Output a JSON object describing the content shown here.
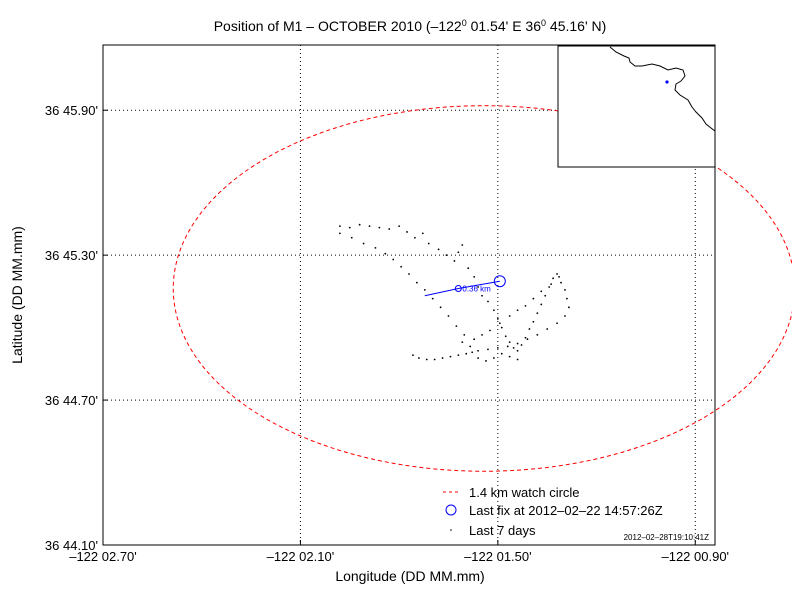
{
  "chart_data": {
    "type": "scatter",
    "title": {
      "prefix": "Position of M1 – OCTOBER 2010 (–122",
      "sup1": "0",
      "mid": " 01.54' E  36",
      "sup2": "0",
      "suffix": " 45.16' N)"
    },
    "xlabel": "Longitude (DD MM.mm)",
    "ylabel": "Latitude (DD MM.mm)",
    "xlim": [
      -122.045,
      -122.014
    ],
    "ylim": [
      36.735,
      36.7695
    ],
    "xticks": [
      {
        "value": -122.045,
        "label": "–122 02.70'"
      },
      {
        "value": -122.035,
        "label": "–122 02.10'"
      },
      {
        "value": -122.025,
        "label": "–122 01.50'"
      },
      {
        "value": -122.015,
        "label": "–122 00.90'"
      }
    ],
    "yticks": [
      {
        "value": 36.735,
        "label": "36 44.10'"
      },
      {
        "value": 36.745,
        "label": "36 44.70'"
      },
      {
        "value": 36.755,
        "label": "36 45.30'"
      },
      {
        "value": 36.765,
        "label": "36 45.90'"
      }
    ],
    "grid": true,
    "legend_position": "bottom-right",
    "series": [
      {
        "name": "1.4 km watch circle",
        "kind": "watch-circle",
        "color": "#ff0000",
        "center": [
          -122.0257,
          36.7527
        ],
        "radius_km": 1.4
      },
      {
        "name": "Last fix at 2012–02–22 14:57:26Z",
        "kind": "last-fix",
        "color": "#0000ff",
        "x": -122.0249,
        "y": 36.7532
      },
      {
        "name": "Last 7 days",
        "kind": "history",
        "color": "#000000",
        "points": [
          [
            -122.033,
            36.757
          ],
          [
            -122.0325,
            36.7569
          ],
          [
            -122.032,
            36.7571
          ],
          [
            -122.0315,
            36.757
          ],
          [
            -122.031,
            36.7569
          ],
          [
            -122.0305,
            36.7568
          ],
          [
            -122.03,
            36.757
          ],
          [
            -122.0296,
            36.7566
          ],
          [
            -122.0292,
            36.7562
          ],
          [
            -122.0288,
            36.7565
          ],
          [
            -122.0285,
            36.7558
          ],
          [
            -122.028,
            36.7554
          ],
          [
            -122.0276,
            36.755
          ],
          [
            -122.0272,
            36.7546
          ],
          [
            -122.027,
            36.7552
          ],
          [
            -122.0268,
            36.7557
          ],
          [
            -122.0265,
            36.7541
          ],
          [
            -122.0262,
            36.7535
          ],
          [
            -122.026,
            36.7528
          ],
          [
            -122.0258,
            36.7522
          ],
          [
            -122.0255,
            36.7518
          ],
          [
            -122.0252,
            36.7512
          ],
          [
            -122.025,
            36.7506
          ],
          [
            -122.0248,
            36.75
          ],
          [
            -122.0246,
            36.7494
          ],
          [
            -122.0244,
            36.749
          ],
          [
            -122.0242,
            36.7486
          ],
          [
            -122.024,
            36.7484
          ],
          [
            -122.0238,
            36.7488
          ],
          [
            -122.0236,
            36.7493
          ],
          [
            -122.0234,
            36.7499
          ],
          [
            -122.0232,
            36.7504
          ],
          [
            -122.023,
            36.751
          ],
          [
            -122.0228,
            36.7516
          ],
          [
            -122.0226,
            36.7522
          ],
          [
            -122.0224,
            36.7528
          ],
          [
            -122.0222,
            36.7534
          ],
          [
            -122.022,
            36.7537
          ],
          [
            -122.0218,
            36.7531
          ],
          [
            -122.0216,
            36.7526
          ],
          [
            -122.0215,
            36.752
          ],
          [
            -122.0214,
            36.7514
          ],
          [
            -122.0216,
            36.7508
          ],
          [
            -122.022,
            36.7503
          ],
          [
            -122.0225,
            36.7499
          ],
          [
            -122.023,
            36.7495
          ],
          [
            -122.0235,
            36.7492
          ],
          [
            -122.024,
            36.7489
          ],
          [
            -122.0245,
            36.7487
          ],
          [
            -122.025,
            36.7486
          ],
          [
            -122.0255,
            36.7485
          ],
          [
            -122.026,
            36.7484
          ],
          [
            -122.0263,
            36.7483
          ],
          [
            -122.0266,
            36.7482
          ],
          [
            -122.027,
            36.7481
          ],
          [
            -122.0274,
            36.748
          ],
          [
            -122.0278,
            36.7479
          ],
          [
            -122.0282,
            36.7478
          ],
          [
            -122.0286,
            36.7478
          ],
          [
            -122.029,
            36.7479
          ],
          [
            -122.0293,
            36.7481
          ],
          [
            -122.0268,
            36.749
          ],
          [
            -122.0262,
            36.7492
          ],
          [
            -122.0258,
            36.7495
          ],
          [
            -122.0254,
            36.7498
          ],
          [
            -122.0249,
            36.7503
          ],
          [
            -122.0244,
            36.7508
          ],
          [
            -122.024,
            36.7512
          ],
          [
            -122.0236,
            36.7515
          ],
          [
            -122.0232,
            36.752
          ],
          [
            -122.0228,
            36.7525
          ],
          [
            -122.0223,
            36.753
          ],
          [
            -122.0219,
            36.7535
          ],
          [
            -122.024,
            36.7478
          ],
          [
            -122.0244,
            36.748
          ],
          [
            -122.0248,
            36.7482
          ],
          [
            -122.0252,
            36.7479
          ],
          [
            -122.0256,
            36.7477
          ],
          [
            -122.026,
            36.7479
          ],
          [
            -122.0264,
            36.7487
          ],
          [
            -122.0267,
            36.7495
          ],
          [
            -122.0271,
            36.7501
          ],
          [
            -122.0275,
            36.7508
          ],
          [
            -122.0279,
            36.7514
          ],
          [
            -122.0283,
            36.752
          ],
          [
            -122.0287,
            36.7526
          ],
          [
            -122.0291,
            36.7531
          ],
          [
            -122.0295,
            36.7537
          ],
          [
            -122.0299,
            36.7542
          ],
          [
            -122.0303,
            36.7547
          ],
          [
            -122.0307,
            36.7551
          ],
          [
            -122.0312,
            36.7555
          ],
          [
            -122.0318,
            36.7558
          ],
          [
            -122.0324,
            36.7562
          ],
          [
            -122.033,
            36.7565
          ]
        ]
      },
      {
        "name": "Drift vector",
        "kind": "track",
        "color": "#0000ff",
        "points": [
          [
            -122.0249,
            36.7532
          ],
          [
            -122.027,
            36.7527
          ],
          [
            -122.0287,
            36.7522
          ]
        ],
        "annotation": "0.36 km"
      }
    ]
  },
  "inset": {
    "coast_color": "#000000",
    "marker_color": "#0000ff"
  },
  "timestamp": "2012–02–28T19:10:41Z"
}
